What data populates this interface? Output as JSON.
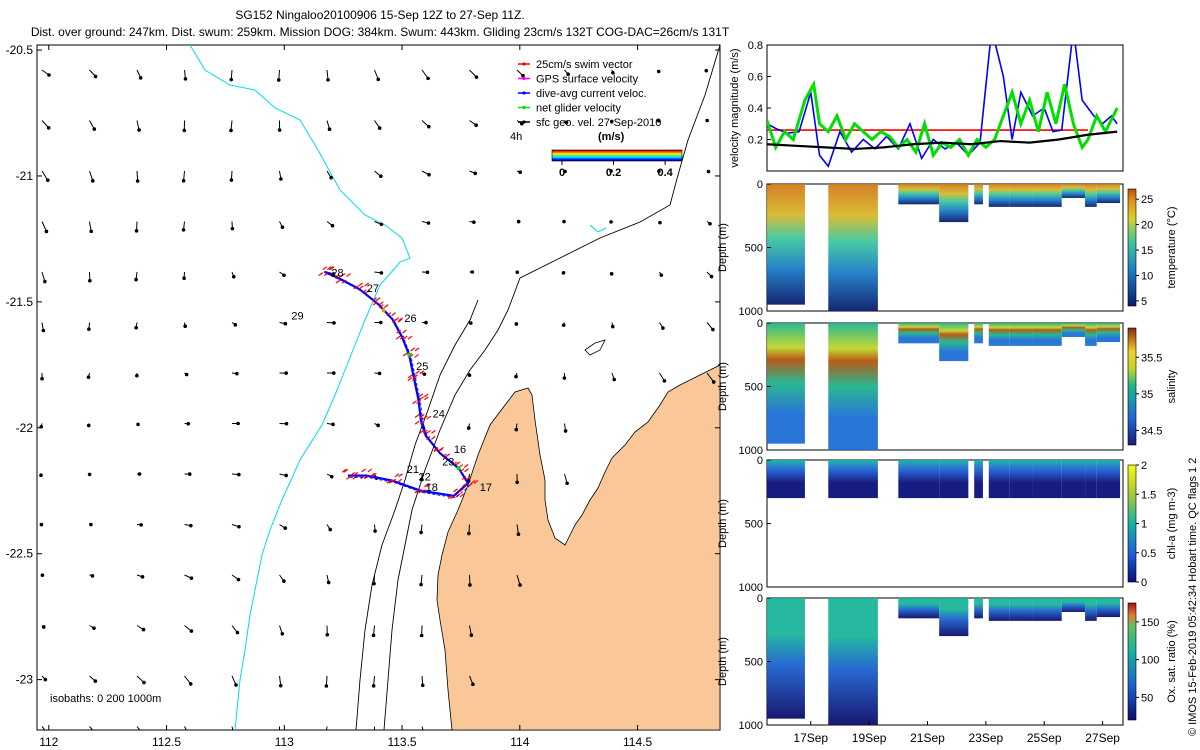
{
  "header": {
    "line1": "SG152 Ningaloo20100906 15-Sep 12Z to 27-Sep 11Z.",
    "line2": "Dist. over ground: 247km. Dist. swum: 259km. Mission DOG: 384km. Swum: 443km. Gliding 23cm/s 132T COG-DAC=26cm/s 131T"
  },
  "footer_stamp": "© IMOS 15-Feb-2019 05:42:34 Hobart time. QC flags 1  2",
  "colors": {
    "land": "#fac898",
    "coast_cyan": "#00dcee",
    "track_red": "#ff0000",
    "track_blue": "#0000ff",
    "net_green": "#00e000",
    "isobath": "#000000"
  },
  "chart_data": [
    {
      "type": "scatter",
      "panel": "map",
      "xlabel": "",
      "ylabel": "",
      "xlim": [
        111.95,
        114.85
      ],
      "ylim": [
        -23.2,
        -20.48
      ],
      "xticks": [
        112,
        112.5,
        113,
        113.5,
        114,
        114.5
      ],
      "xtick_labels": [
        "112",
        "112.5",
        "113",
        "113.5",
        "114",
        "114.5"
      ],
      "yticks": [
        -20.5,
        -21,
        -21.5,
        -22,
        -22.5,
        -23
      ],
      "ytick_labels": [
        "-20.5",
        "-21",
        "-21.5",
        "-22",
        "-22.5",
        "-23"
      ],
      "legend": {
        "placement": "top-right",
        "items": [
          {
            "label": "25cm/s swim vector",
            "color": "#ff0000"
          },
          {
            "label": "GPS surface velocity",
            "color": "#ff00ff"
          },
          {
            "label": "dive-avg current veloc.",
            "color": "#0000ff"
          },
          {
            "label": "net glider velocity",
            "color": "#00e000"
          },
          {
            "label": "sfc geo. vel. 27-Sep-2010",
            "color": "#000000"
          }
        ],
        "extra_label": "4h"
      },
      "colorbar": {
        "title": "(m/s)",
        "ticks": [
          0,
          0.2,
          0.4
        ],
        "tick_labels": [
          "0",
          "0.2",
          "0.4"
        ]
      },
      "isobath_note": "isobaths: 0   200  1000m",
      "track": [
        [
          113.17,
          -21.38
        ],
        [
          113.24,
          -21.41
        ],
        [
          113.32,
          -21.45
        ],
        [
          113.4,
          -21.51
        ],
        [
          113.46,
          -21.57
        ],
        [
          113.5,
          -21.64
        ],
        [
          113.53,
          -21.71
        ],
        [
          113.55,
          -21.8
        ],
        [
          113.57,
          -21.89
        ],
        [
          113.58,
          -21.97
        ],
        [
          113.6,
          -22.03
        ],
        [
          113.66,
          -22.1
        ],
        [
          113.74,
          -22.16
        ],
        [
          113.78,
          -22.22
        ],
        [
          113.72,
          -22.27
        ],
        [
          113.58,
          -22.25
        ],
        [
          113.46,
          -22.21
        ],
        [
          113.35,
          -22.19
        ],
        [
          113.27,
          -22.19
        ]
      ],
      "day_labels": [
        {
          "day": "28",
          "lon": 113.2,
          "lat": -21.4
        },
        {
          "day": "27",
          "lon": 113.35,
          "lat": -21.46
        },
        {
          "day": "29",
          "lon": 113.03,
          "lat": -21.57
        },
        {
          "day": "26",
          "lon": 113.51,
          "lat": -21.58
        },
        {
          "day": "25",
          "lon": 113.56,
          "lat": -21.77
        },
        {
          "day": "24",
          "lon": 113.63,
          "lat": -21.96
        },
        {
          "day": "16",
          "lon": 113.72,
          "lat": -22.1
        },
        {
          "day": "23",
          "lon": 113.67,
          "lat": -22.15
        },
        {
          "day": "22",
          "lon": 113.57,
          "lat": -22.21
        },
        {
          "day": "21",
          "lon": 113.52,
          "lat": -22.18
        },
        {
          "day": "18",
          "lon": 113.6,
          "lat": -22.25
        },
        {
          "day": "17",
          "lon": 113.83,
          "lat": -22.25
        }
      ]
    },
    {
      "type": "line",
      "panel": "velocity",
      "ylabel": "velocity magnitude (m/s)",
      "ylim": [
        0,
        0.8
      ],
      "yticks": [
        0.2,
        0.4,
        0.6,
        0.8
      ],
      "ytick_labels": [
        "0.2",
        "0.4",
        "0.6",
        "0.8"
      ],
      "series": [
        {
          "name": "25cm/s swim vector",
          "color": "#ff0000",
          "x": [
            15.5,
            26.5
          ],
          "values": [
            0.26,
            0.26
          ]
        },
        {
          "name": "dive-avg current veloc.",
          "color": "#0000ff",
          "x": [
            15.5,
            15.8,
            16.2,
            16.6,
            17,
            17.3,
            17.6,
            18,
            18.4,
            18.8,
            19.2,
            19.6,
            20,
            20.4,
            20.8,
            21.2,
            21.6,
            22,
            22.4,
            22.8,
            23.2,
            23.6,
            23.9,
            24.2,
            24.6,
            25,
            25.3,
            25.6,
            26,
            26.3,
            26.5,
            26.7,
            27,
            27.3,
            27.5
          ],
          "values": [
            0.3,
            0.27,
            0.24,
            0.25,
            0.5,
            0.1,
            0.03,
            0.25,
            0.12,
            0.2,
            0.14,
            0.22,
            0.14,
            0.3,
            0.08,
            0.2,
            0.14,
            0.18,
            0.1,
            0.18,
            0.9,
            0.6,
            0.2,
            0.5,
            0.35,
            0.4,
            0.25,
            0.26,
            0.9,
            0.45,
            0.4,
            0.35,
            0.3,
            0.35,
            0.3
          ]
        },
        {
          "name": "net glider velocity",
          "color": "#00e000",
          "x": [
            15.5,
            15.8,
            16.1,
            16.4,
            16.8,
            17.1,
            17.3,
            17.6,
            17.9,
            18.2,
            18.5,
            18.8,
            19.1,
            19.4,
            19.7,
            20,
            20.3,
            20.6,
            20.9,
            21.2,
            21.5,
            21.8,
            22.1,
            22.4,
            22.7,
            23,
            23.3,
            23.6,
            23.9,
            24.2,
            24.5,
            24.8,
            25.1,
            25.4,
            25.7,
            26,
            26.3,
            26.5,
            26.8,
            27.1,
            27.5
          ],
          "values": [
            0.32,
            0.15,
            0.25,
            0.2,
            0.45,
            0.55,
            0.3,
            0.25,
            0.35,
            0.2,
            0.3,
            0.25,
            0.2,
            0.25,
            0.22,
            0.15,
            0.2,
            0.12,
            0.3,
            0.1,
            0.18,
            0.15,
            0.2,
            0.1,
            0.2,
            0.15,
            0.2,
            0.35,
            0.5,
            0.3,
            0.45,
            0.25,
            0.5,
            0.3,
            0.55,
            0.3,
            0.15,
            0.2,
            0.35,
            0.25,
            0.4
          ]
        },
        {
          "name": "sfc geo. vel.",
          "color": "#000000",
          "x": [
            15.5,
            16.5,
            17.5,
            18.5,
            19.5,
            20.5,
            21.5,
            22.5,
            23.5,
            24.5,
            25.5,
            26.5,
            27.5
          ],
          "values": [
            0.17,
            0.16,
            0.15,
            0.14,
            0.15,
            0.17,
            0.18,
            0.17,
            0.19,
            0.18,
            0.2,
            0.23,
            0.25
          ]
        }
      ]
    },
    {
      "type": "scatter",
      "panel": "temperature",
      "ylabel": "Depth (m)",
      "ylim": [
        1000,
        0
      ],
      "yticks": [
        0,
        500,
        1000
      ],
      "ytick_labels": [
        "0",
        "500",
        "1000"
      ],
      "colorbar": {
        "label": "temperature (°C)",
        "range": [
          4,
          27
        ],
        "ticks": [
          5,
          10,
          15,
          20,
          25
        ],
        "tick_labels": [
          "5",
          "10",
          "15",
          "20",
          "25"
        ]
      },
      "dive_segments": [
        [
          15.5,
          16.8
        ],
        [
          17.6,
          19.3
        ],
        [
          20,
          21.4
        ],
        [
          21.4,
          22.4
        ],
        [
          22.6,
          22.9
        ],
        [
          23.1,
          23.8
        ],
        [
          23.8,
          24.6
        ],
        [
          24.6,
          25.6
        ],
        [
          25.6,
          26.4
        ],
        [
          26.4,
          26.8
        ],
        [
          26.8,
          27.6
        ]
      ],
      "max_depth_m": [
        950,
        1000,
        160,
        300,
        160,
        180,
        180,
        180,
        110,
        180,
        150
      ]
    },
    {
      "type": "scatter",
      "panel": "salinity",
      "ylabel": "Depth (m)",
      "ylim": [
        1000,
        0
      ],
      "yticks": [
        0,
        500,
        1000
      ],
      "ytick_labels": [
        "0",
        "500",
        "1000"
      ],
      "colorbar": {
        "label": "salinity",
        "range": [
          34.3,
          35.9
        ],
        "ticks": [
          34.5,
          35,
          35.5
        ],
        "tick_labels": [
          "34.5",
          "35",
          "35.5"
        ]
      },
      "max_depth_m": [
        950,
        1000,
        160,
        300,
        160,
        180,
        180,
        180,
        110,
        180,
        150
      ]
    },
    {
      "type": "scatter",
      "panel": "chlorophyll",
      "ylabel": "Depth (m)",
      "ylim": [
        1000,
        0
      ],
      "yticks": [
        0,
        500,
        1000
      ],
      "ytick_labels": [
        "0",
        "500",
        "1000"
      ],
      "colorbar": {
        "label": "chl-a (mg m-3)",
        "range": [
          0,
          2
        ],
        "ticks": [
          0,
          0.5,
          1,
          1.5,
          2
        ],
        "tick_labels": [
          "0",
          "0.5",
          "1",
          "1.5",
          "2"
        ]
      },
      "max_depth_m": [
        300,
        300,
        300,
        300,
        300,
        300,
        300,
        300,
        300,
        300,
        300
      ]
    },
    {
      "type": "scatter",
      "panel": "oxygen",
      "ylabel": "Depth (m)",
      "ylim": [
        1000,
        0
      ],
      "yticks": [
        0,
        500,
        1000
      ],
      "ytick_labels": [
        "0",
        "500",
        "1000"
      ],
      "colorbar": {
        "label": "Ox. sat. ratio (%)",
        "range": [
          20,
          175
        ],
        "ticks": [
          50,
          100,
          150
        ],
        "tick_labels": [
          "50",
          "100",
          "150"
        ]
      },
      "max_depth_m": [
        950,
        1000,
        160,
        300,
        160,
        180,
        180,
        180,
        110,
        180,
        150
      ],
      "xticks": [
        17,
        19,
        21,
        23,
        25,
        27
      ],
      "xtick_labels": [
        "17Sep",
        "19Sep",
        "21Sep",
        "23Sep",
        "25Sep",
        "27Sep"
      ],
      "xlim": [
        15.5,
        27.7
      ]
    }
  ]
}
